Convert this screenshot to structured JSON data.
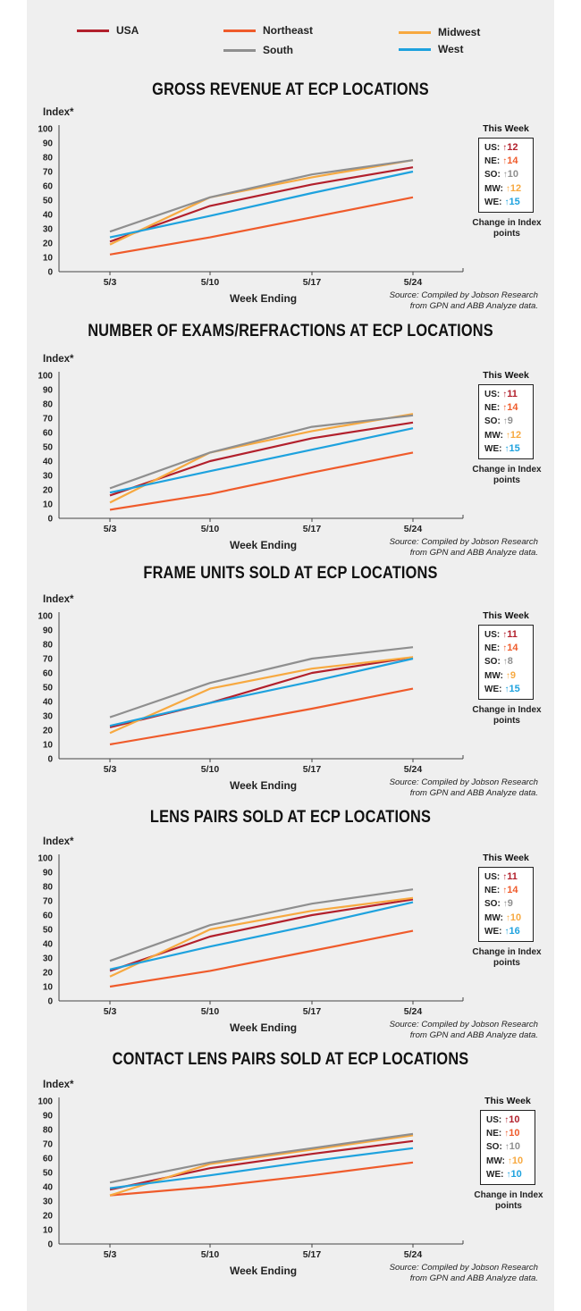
{
  "legend": [
    {
      "name": "USA",
      "color": "#b2202c"
    },
    {
      "name": "Northeast",
      "color": "#ef5b2b"
    },
    {
      "name": "Midwest",
      "color": "#f7a940"
    },
    {
      "name": "South",
      "color": "#8f8f8f"
    },
    {
      "name": "West",
      "color": "#1ea2de"
    }
  ],
  "arrow": "↑",
  "chart_data": [
    {
      "type": "line",
      "title": "GROSS REVENUE AT ECP LOCATIONS",
      "ylabel": "Index*",
      "xlabel": "Week Ending",
      "categories": [
        "5/3",
        "5/10",
        "5/17",
        "5/24"
      ],
      "ylim": [
        0,
        100
      ],
      "yticks": [
        0,
        10,
        20,
        30,
        40,
        50,
        60,
        70,
        80,
        90,
        100
      ],
      "series": [
        {
          "name": "USA",
          "color": "#b2202c",
          "values": [
            21,
            46,
            61,
            73
          ]
        },
        {
          "name": "Northeast",
          "color": "#ef5b2b",
          "values": [
            12,
            24,
            38,
            52
          ]
        },
        {
          "name": "Midwest",
          "color": "#f7a940",
          "values": [
            19,
            52,
            66,
            78
          ]
        },
        {
          "name": "South",
          "color": "#8f8f8f",
          "values": [
            28,
            52,
            68,
            78
          ]
        },
        {
          "name": "West",
          "color": "#1ea2de",
          "values": [
            24,
            39,
            55,
            70
          ]
        }
      ],
      "this_week_label": "This Week",
      "changes": [
        {
          "label": "US:",
          "value": "12",
          "color": "#b2202c"
        },
        {
          "label": "NE:",
          "value": "14",
          "color": "#ef5b2b"
        },
        {
          "label": "SO:",
          "value": "10",
          "color": "#8f8f8f"
        },
        {
          "label": "MW:",
          "value": "12",
          "color": "#f7a940"
        },
        {
          "label": "WE:",
          "value": "15",
          "color": "#1ea2de"
        }
      ],
      "change_note": "Change in Index points",
      "source_line1": "Source: Compiled by Jobson Research",
      "source_line2": "from GPN and ABB Analyze data."
    },
    {
      "type": "line",
      "title": "NUMBER OF EXAMS/REFRACTIONS AT ECP LOCATIONS",
      "ylabel": "Index*",
      "xlabel": "Week Ending",
      "categories": [
        "5/3",
        "5/10",
        "5/17",
        "5/24"
      ],
      "ylim": [
        0,
        100
      ],
      "yticks": [
        0,
        10,
        20,
        30,
        40,
        50,
        60,
        70,
        80,
        90,
        100
      ],
      "series": [
        {
          "name": "USA",
          "color": "#b2202c",
          "values": [
            16,
            40,
            56,
            67
          ]
        },
        {
          "name": "Northeast",
          "color": "#ef5b2b",
          "values": [
            6,
            17,
            32,
            46
          ]
        },
        {
          "name": "Midwest",
          "color": "#f7a940",
          "values": [
            11,
            46,
            61,
            73
          ]
        },
        {
          "name": "South",
          "color": "#8f8f8f",
          "values": [
            21,
            46,
            64,
            72
          ]
        },
        {
          "name": "West",
          "color": "#1ea2de",
          "values": [
            18,
            33,
            48,
            63
          ]
        }
      ],
      "this_week_label": "This Week",
      "changes": [
        {
          "label": "US:",
          "value": "11",
          "color": "#b2202c"
        },
        {
          "label": "NE:",
          "value": "14",
          "color": "#ef5b2b"
        },
        {
          "label": "SO:",
          "value": "9",
          "color": "#8f8f8f"
        },
        {
          "label": "MW:",
          "value": "12",
          "color": "#f7a940"
        },
        {
          "label": "WE:",
          "value": "15",
          "color": "#1ea2de"
        }
      ],
      "change_note": "Change in Index points",
      "source_line1": "Source: Compiled by Jobson Research",
      "source_line2": "from GPN and ABB Analyze data."
    },
    {
      "type": "line",
      "title": "FRAME UNITS SOLD AT ECP LOCATIONS",
      "ylabel": "Index*",
      "xlabel": "Week Ending",
      "categories": [
        "5/3",
        "5/10",
        "5/17",
        "5/24"
      ],
      "ylim": [
        0,
        100
      ],
      "yticks": [
        0,
        10,
        20,
        30,
        40,
        50,
        60,
        70,
        80,
        90,
        100
      ],
      "series": [
        {
          "name": "USA",
          "color": "#b2202c",
          "values": [
            22,
            39,
            60,
            71
          ]
        },
        {
          "name": "Northeast",
          "color": "#ef5b2b",
          "values": [
            10,
            22,
            35,
            49
          ]
        },
        {
          "name": "Midwest",
          "color": "#f7a940",
          "values": [
            18,
            49,
            63,
            71
          ]
        },
        {
          "name": "South",
          "color": "#8f8f8f",
          "values": [
            29,
            53,
            70,
            78
          ]
        },
        {
          "name": "West",
          "color": "#1ea2de",
          "values": [
            23,
            39,
            54,
            70
          ]
        }
      ],
      "this_week_label": "This Week",
      "changes": [
        {
          "label": "US:",
          "value": "11",
          "color": "#b2202c"
        },
        {
          "label": "NE:",
          "value": "14",
          "color": "#ef5b2b"
        },
        {
          "label": "SO:",
          "value": "8",
          "color": "#8f8f8f"
        },
        {
          "label": "MW:",
          "value": "9",
          "color": "#f7a940"
        },
        {
          "label": "WE:",
          "value": "15",
          "color": "#1ea2de"
        }
      ],
      "change_note": "Change in Index points",
      "source_line1": "Source: Compiled by Jobson Research",
      "source_line2": "from GPN and ABB Analyze data."
    },
    {
      "type": "line",
      "title": "LENS PAIRS SOLD AT ECP LOCATIONS",
      "ylabel": "Index*",
      "xlabel": "Week Ending",
      "categories": [
        "5/3",
        "5/10",
        "5/17",
        "5/24"
      ],
      "ylim": [
        0,
        100
      ],
      "yticks": [
        0,
        10,
        20,
        30,
        40,
        50,
        60,
        70,
        80,
        90,
        100
      ],
      "series": [
        {
          "name": "USA",
          "color": "#b2202c",
          "values": [
            21,
            45,
            60,
            71
          ]
        },
        {
          "name": "Northeast",
          "color": "#ef5b2b",
          "values": [
            10,
            21,
            35,
            49
          ]
        },
        {
          "name": "Midwest",
          "color": "#f7a940",
          "values": [
            17,
            50,
            63,
            72
          ]
        },
        {
          "name": "South",
          "color": "#8f8f8f",
          "values": [
            28,
            53,
            68,
            78
          ]
        },
        {
          "name": "West",
          "color": "#1ea2de",
          "values": [
            22,
            38,
            53,
            69
          ]
        }
      ],
      "this_week_label": "This Week",
      "changes": [
        {
          "label": "US:",
          "value": "11",
          "color": "#b2202c"
        },
        {
          "label": "NE:",
          "value": "14",
          "color": "#ef5b2b"
        },
        {
          "label": "SO:",
          "value": "9",
          "color": "#8f8f8f"
        },
        {
          "label": "MW:",
          "value": "10",
          "color": "#f7a940"
        },
        {
          "label": "WE:",
          "value": "16",
          "color": "#1ea2de"
        }
      ],
      "change_note": "Change in Index points",
      "source_line1": "Source: Compiled by Jobson Research",
      "source_line2": "from GPN and ABB Analyze data."
    },
    {
      "type": "line",
      "title": "CONTACT LENS PAIRS SOLD AT ECP LOCATIONS",
      "ylabel": "Index*",
      "xlabel": "Week Ending",
      "categories": [
        "5/3",
        "5/10",
        "5/17",
        "5/24"
      ],
      "ylim": [
        0,
        100
      ],
      "yticks": [
        0,
        10,
        20,
        30,
        40,
        50,
        60,
        70,
        80,
        90,
        100
      ],
      "series": [
        {
          "name": "USA",
          "color": "#b2202c",
          "values": [
            38,
            53,
            63,
            72
          ]
        },
        {
          "name": "Northeast",
          "color": "#ef5b2b",
          "values": [
            34,
            40,
            48,
            57
          ]
        },
        {
          "name": "Midwest",
          "color": "#f7a940",
          "values": [
            34,
            56,
            66,
            76
          ]
        },
        {
          "name": "South",
          "color": "#8f8f8f",
          "values": [
            43,
            57,
            67,
            77
          ]
        },
        {
          "name": "West",
          "color": "#1ea2de",
          "values": [
            39,
            48,
            58,
            67
          ]
        }
      ],
      "this_week_label": "This Week",
      "changes": [
        {
          "label": "US:",
          "value": "10",
          "color": "#b2202c"
        },
        {
          "label": "NE:",
          "value": "10",
          "color": "#ef5b2b"
        },
        {
          "label": "SO:",
          "value": "10",
          "color": "#8f8f8f"
        },
        {
          "label": "MW:",
          "value": "10",
          "color": "#f7a940"
        },
        {
          "label": "WE:",
          "value": "10",
          "color": "#1ea2de"
        }
      ],
      "change_note": "Change in Index points",
      "source_line1": "Source: Compiled by Jobson Research",
      "source_line2": "from GPN and ABB Analyze data."
    }
  ]
}
